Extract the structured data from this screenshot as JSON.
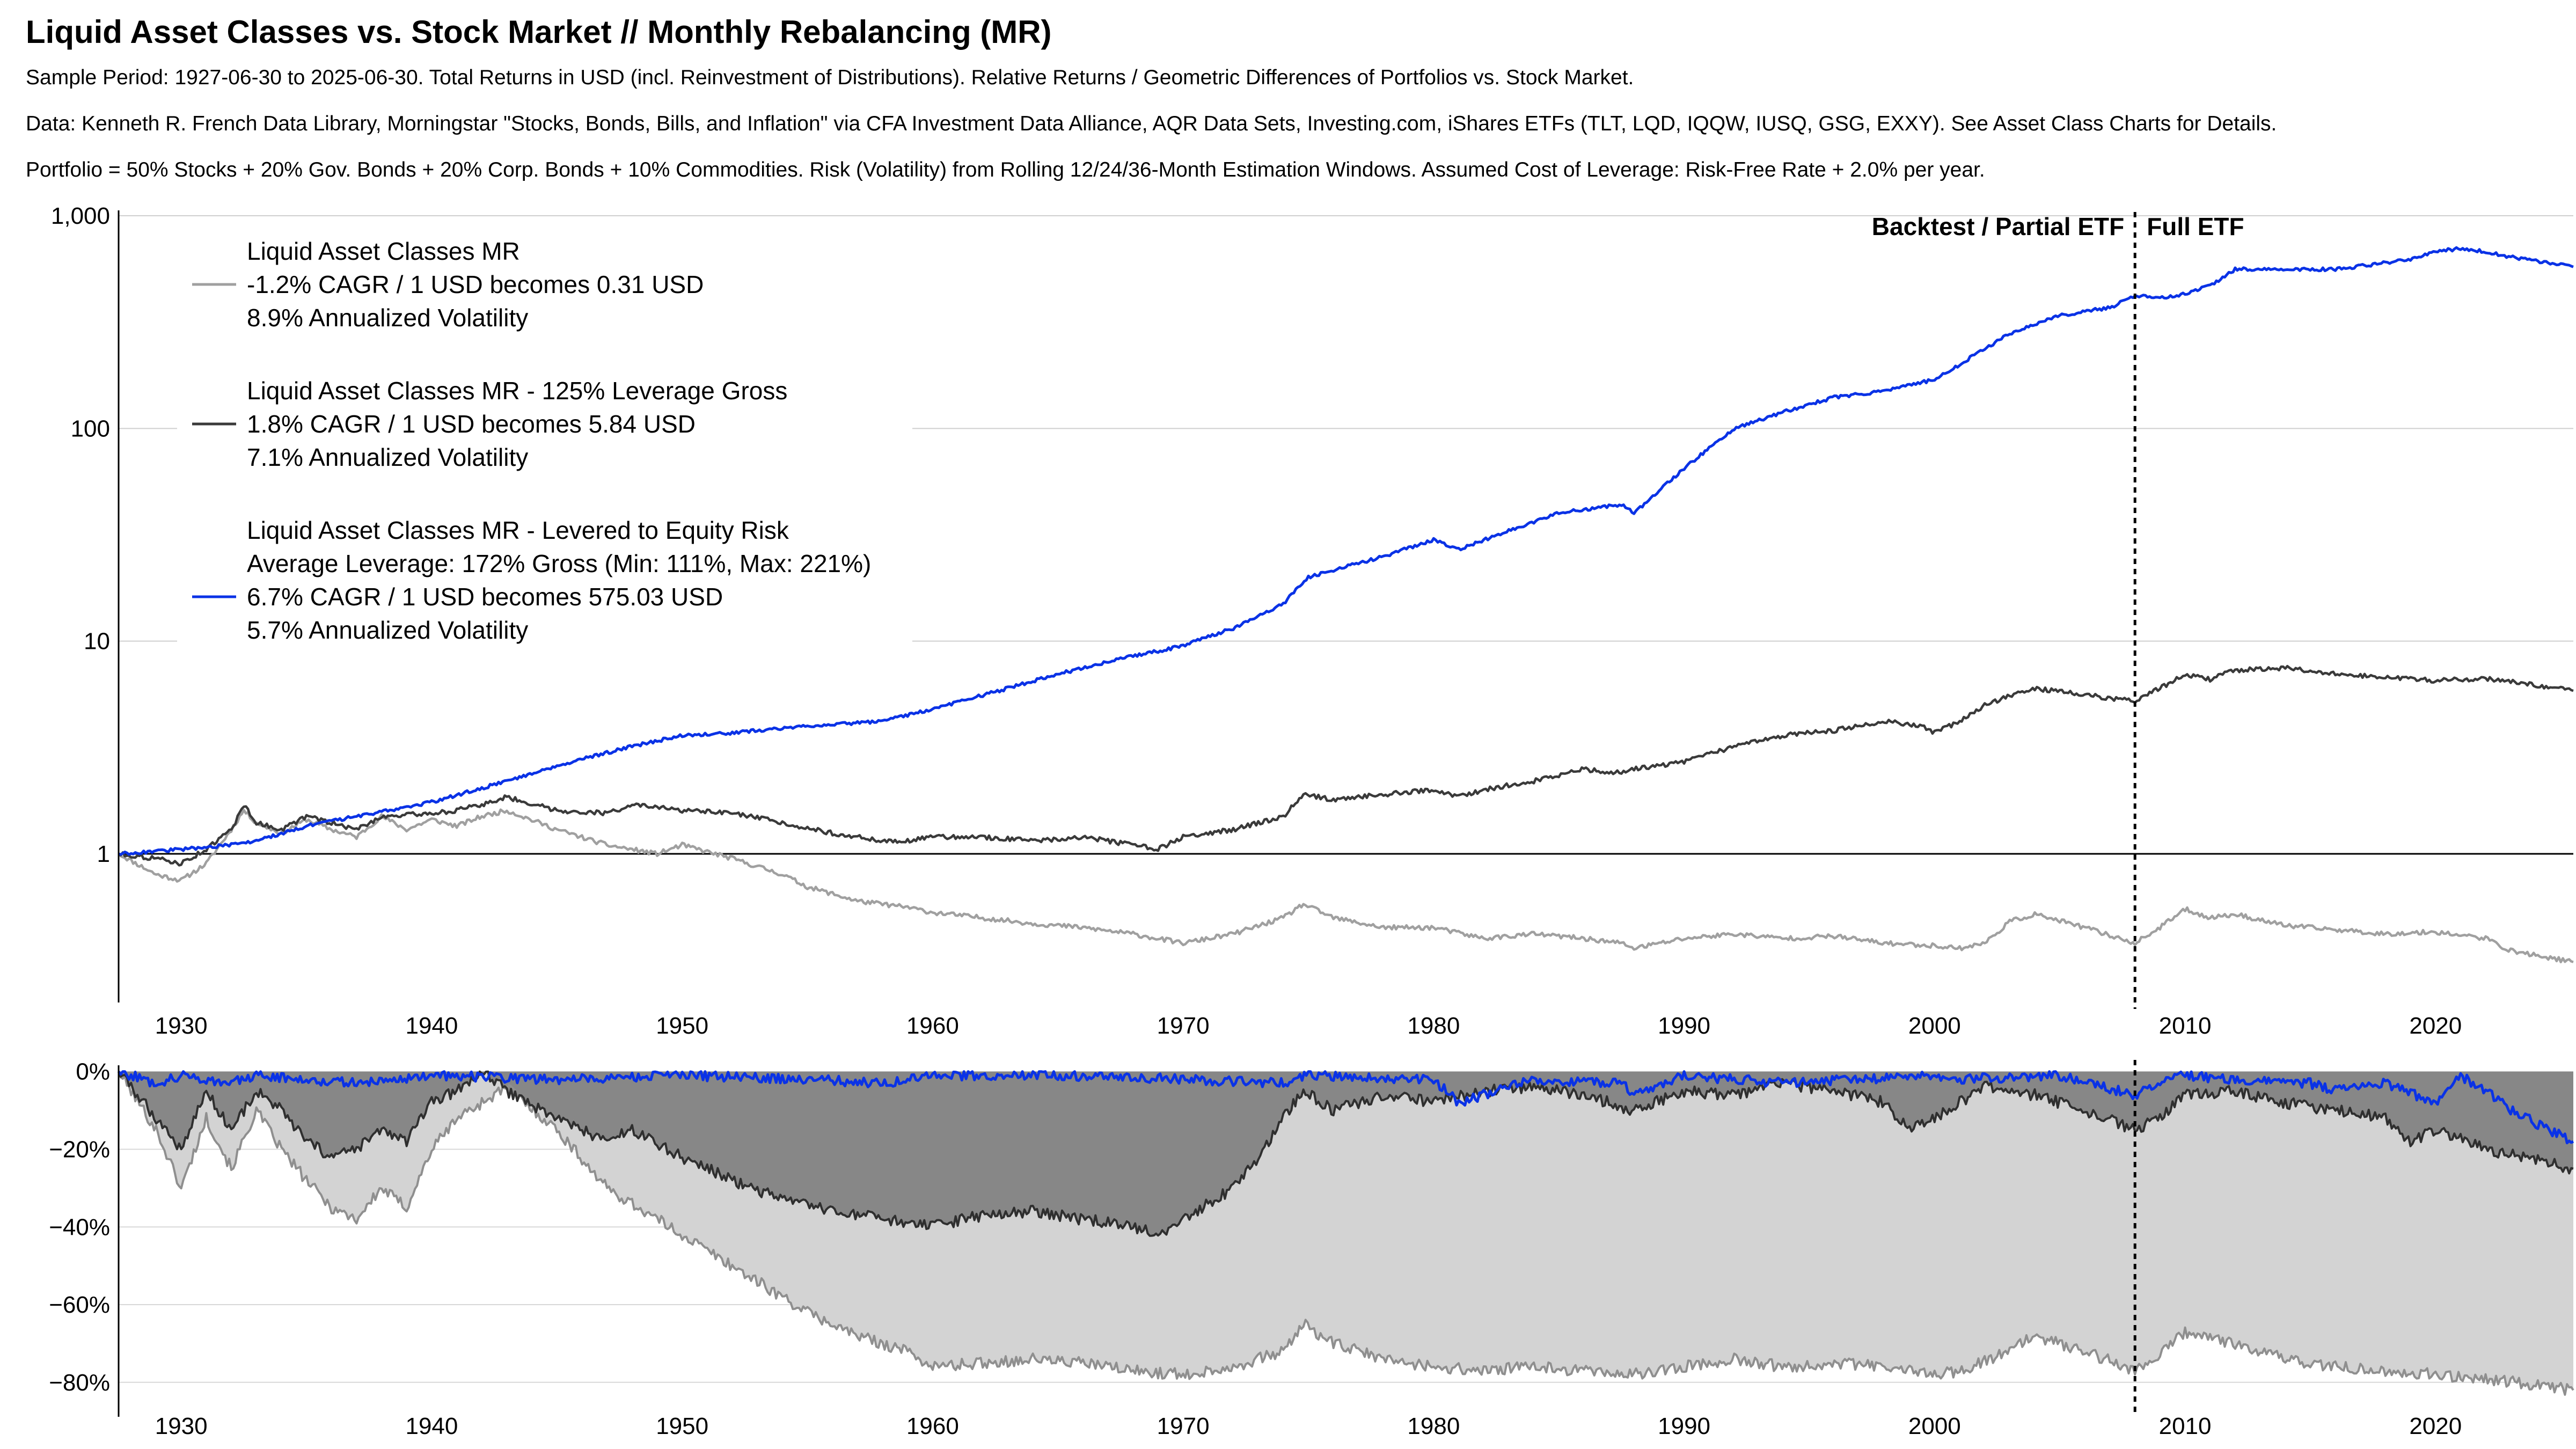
{
  "title": "Liquid Asset Classes vs. Stock Market // Monthly Rebalancing (MR)",
  "subtitle_lines": [
    "Sample Period: 1927-06-30 to 2025-06-30. Total Returns in USD (incl. Reinvestment of Distributions). Relative Returns / Geometric Differences of Portfolios vs. Stock Market.",
    "Data: Kenneth R. French Data Library, Morningstar \"Stocks, Bonds, Bills, and Inflation\" via CFA Investment Data Alliance, AQR Data Sets, Investing.com, iShares ETFs (TLT, LQD, IQQW, IUSQ, GSG, EXXY). See Asset Class Charts for Details.",
    "Portfolio = 50% Stocks + 20% Gov. Bonds + 20% Corp. Bonds + 10% Commodities. Risk (Volatility) from Rolling 12/24/36-Month Estimation Windows. Assumed Cost of Leverage: Risk-Free Rate + 2.0% per year."
  ],
  "colors": {
    "unlevered": "#a0a0a0",
    "gross125": "#3a3a3a",
    "levered": "#0a32e6",
    "dd_light_fill": "#d3d3d3",
    "dd_dark_fill": "#878787"
  },
  "chart_data": [
    {
      "type": "line",
      "yscale": "log",
      "ylim": [
        0.2,
        1000
      ],
      "xlim": [
        1927.5,
        2025.5
      ],
      "yticks": [
        1,
        10,
        100,
        1000
      ],
      "ytick_labels": [
        "1",
        "10",
        "100",
        "1,000"
      ],
      "xticks": [
        1930,
        1940,
        1950,
        1960,
        1970,
        1980,
        1990,
        2000,
        2010,
        2020
      ],
      "xtick_labels": [
        "1930",
        "1940",
        "1950",
        "1960",
        "1970",
        "1980",
        "1990",
        "2000",
        "2010",
        "2020"
      ],
      "grid": true,
      "legend_position": "top-left",
      "annotations": {
        "split_year": 2008,
        "left_label": "Backtest / Partial ETF",
        "right_label": "Full ETF"
      },
      "legend": [
        {
          "lines": [
            "Liquid Asset Classes MR",
            "-1.2% CAGR / 1 USD becomes 0.31 USD",
            "8.9% Annualized Volatility"
          ]
        },
        {
          "lines": [
            "Liquid Asset Classes MR - 125% Leverage Gross",
            "1.8% CAGR / 1 USD becomes 5.84 USD",
            "7.1% Annualized Volatility"
          ]
        },
        {
          "lines": [
            "Liquid Asset Classes MR - Levered to Equity Risk",
            "Average Leverage: 172% Gross (Min: 111%, Max: 221%)",
            "6.7% CAGR / 1 USD becomes 575.03 USD",
            "5.7% Annualized Volatility"
          ]
        }
      ],
      "series": [
        {
          "name": "Liquid Asset Classes MR",
          "x": [
            1927.5,
            1929,
            1930,
            1931,
            1932,
            1932.5,
            1933,
            1934,
            1935,
            1936,
            1937,
            1938,
            1939,
            1940,
            1941,
            1942,
            1943,
            1945,
            1947,
            1949,
            1950,
            1952,
            1954,
            1955,
            1957,
            1959,
            1960,
            1962,
            1964,
            1966,
            1968,
            1970,
            1972,
            1974,
            1974.8,
            1976,
            1978,
            1980,
            1982,
            1984,
            1986,
            1987.5,
            1988,
            1990,
            1992,
            1994,
            1996,
            1998,
            2000,
            2001,
            2002,
            2003,
            2004,
            2006,
            2008,
            2009,
            2010,
            2011,
            2012,
            2014,
            2016,
            2018,
            2020,
            2022,
            2023,
            2025.5
          ],
          "values": [
            1.0,
            0.8,
            0.75,
            0.9,
            1.3,
            1.6,
            1.4,
            1.25,
            1.45,
            1.3,
            1.2,
            1.5,
            1.3,
            1.45,
            1.35,
            1.5,
            1.6,
            1.3,
            1.1,
            1.0,
            1.1,
            0.95,
            0.8,
            0.7,
            0.6,
            0.56,
            0.53,
            0.5,
            0.47,
            0.45,
            0.42,
            0.38,
            0.42,
            0.5,
            0.58,
            0.5,
            0.45,
            0.45,
            0.4,
            0.42,
            0.4,
            0.38,
            0.36,
            0.4,
            0.42,
            0.4,
            0.41,
            0.38,
            0.37,
            0.36,
            0.38,
            0.48,
            0.52,
            0.45,
            0.38,
            0.45,
            0.55,
            0.5,
            0.52,
            0.46,
            0.44,
            0.42,
            0.43,
            0.4,
            0.35,
            0.31
          ]
        },
        {
          "name": "Liquid Asset Classes MR - 125% Leverage Gross",
          "x": [
            1927.5,
            1929,
            1930,
            1931,
            1932,
            1932.5,
            1933,
            1934,
            1935,
            1936,
            1937,
            1938,
            1940,
            1941,
            1942,
            1943,
            1945,
            1947,
            1948,
            1950,
            1952,
            1954,
            1956,
            1958,
            1959,
            1960,
            1962,
            1964,
            1966,
            1968,
            1969,
            1970,
            1972,
            1974,
            1974.8,
            1976,
            1978,
            1980,
            1981,
            1982,
            1984,
            1986,
            1987.5,
            1988,
            1990,
            1992,
            1994,
            1996,
            1998,
            1999.5,
            2000,
            2001,
            2002,
            2003,
            2004,
            2006,
            2008,
            2009,
            2010,
            2011,
            2012,
            2014,
            2016,
            2018,
            2020,
            2022,
            2025.5
          ],
          "values": [
            1.0,
            0.95,
            0.9,
            1.05,
            1.3,
            1.7,
            1.4,
            1.3,
            1.5,
            1.4,
            1.3,
            1.5,
            1.55,
            1.6,
            1.7,
            1.85,
            1.6,
            1.55,
            1.7,
            1.6,
            1.55,
            1.4,
            1.25,
            1.15,
            1.15,
            1.2,
            1.2,
            1.15,
            1.2,
            1.1,
            1.05,
            1.2,
            1.3,
            1.5,
            1.9,
            1.8,
            1.9,
            2.0,
            1.85,
            2.0,
            2.2,
            2.5,
            2.4,
            2.5,
            2.7,
            3.2,
            3.6,
            3.8,
            4.2,
            4.0,
            3.7,
            4.2,
            5.0,
            5.5,
            6.0,
            5.6,
            5.2,
            6.0,
            7.0,
            6.6,
            7.3,
            7.5,
            7.0,
            6.8,
            6.5,
            6.7,
            5.84
          ]
        },
        {
          "name": "Liquid Asset Classes MR - Levered to Equity Risk",
          "x": [
            1927.5,
            1930,
            1932,
            1933,
            1935,
            1937,
            1940,
            1943,
            1945,
            1948,
            1950,
            1952,
            1955,
            1958,
            1960,
            1963,
            1965,
            1968,
            1970,
            1972,
            1974,
            1975,
            1978,
            1980,
            1981,
            1983,
            1985,
            1987.5,
            1988,
            1990,
            1992,
            1994,
            1996,
            1998,
            2000,
            2001,
            2003,
            2005,
            2007,
            2008,
            2009,
            2010,
            2011,
            2012,
            2014,
            2016,
            2018,
            2019,
            2020,
            2021,
            2022,
            2023,
            2025.5
          ],
          "values": [
            1.0,
            1.05,
            1.1,
            1.15,
            1.35,
            1.5,
            1.75,
            2.2,
            2.6,
            3.2,
            3.6,
            3.7,
            4.0,
            4.2,
            4.8,
            6.0,
            7.0,
            8.5,
            9.5,
            11.5,
            15.0,
            20.0,
            25.0,
            30.0,
            27.0,
            33.0,
            40.0,
            44.0,
            40.0,
            65.0,
            100.0,
            120.0,
            140.0,
            150.0,
            170.0,
            200.0,
            280.0,
            340.0,
            370.0,
            420.0,
            410.0,
            430.0,
            470.0,
            560.0,
            560.0,
            560.0,
            600.0,
            620.0,
            680.0,
            700.0,
            680.0,
            640.0,
            575.0
          ]
        }
      ]
    },
    {
      "type": "area",
      "ylim": [
        -85,
        3
      ],
      "xlim": [
        1927.5,
        2025.5
      ],
      "yticks": [
        0,
        -20,
        -40,
        -60,
        -80
      ],
      "ytick_labels": [
        "0%",
        "−20%",
        "−40%",
        "−60%",
        "−80%"
      ],
      "xticks": [
        1930,
        1940,
        1950,
        1960,
        1970,
        1980,
        1990,
        2000,
        2010,
        2020
      ],
      "xtick_labels": [
        "1930",
        "1940",
        "1950",
        "1960",
        "1970",
        "1980",
        "1990",
        "2000",
        "2010",
        "2020"
      ],
      "grid": true,
      "series": [
        {
          "name": "Liquid Asset Classes MR",
          "x": [
            1927.5,
            1929,
            1930,
            1931,
            1932,
            1933,
            1934,
            1935,
            1936,
            1937,
            1938,
            1939,
            1940,
            1941,
            1942,
            1943,
            1945,
            1947,
            1949,
            1950,
            1952,
            1954,
            1955,
            1957,
            1959,
            1960,
            1962,
            1964,
            1966,
            1968,
            1970,
            1972,
            1974,
            1974.8,
            1976,
            1978,
            1980,
            1982,
            1984,
            1986,
            1988,
            1990,
            1992,
            1994,
            1996,
            1998,
            2000,
            2001,
            2003,
            2004,
            2006,
            2008,
            2009,
            2010,
            2012,
            2014,
            2016,
            2018,
            2020,
            2022,
            2025.5
          ],
          "values": [
            0,
            -15,
            -30,
            -12,
            -25,
            -10,
            -20,
            -28,
            -35,
            -38,
            -30,
            -35,
            -20,
            -12,
            -8,
            -4,
            -15,
            -30,
            -38,
            -42,
            -50,
            -58,
            -62,
            -68,
            -72,
            -76,
            -75,
            -74,
            -75,
            -77,
            -78,
            -76,
            -72,
            -65,
            -70,
            -74,
            -76,
            -77,
            -76,
            -77,
            -78,
            -76,
            -74,
            -76,
            -75,
            -76,
            -78,
            -77,
            -72,
            -68,
            -72,
            -77,
            -73,
            -67,
            -70,
            -74,
            -76,
            -77,
            -78,
            -79,
            -82
          ]
        },
        {
          "name": "Liquid Asset Classes MR - 125% Leverage Gross",
          "x": [
            1927.5,
            1928.5,
            1929,
            1930,
            1931,
            1932,
            1933,
            1934,
            1935,
            1936,
            1937,
            1938,
            1939,
            1940,
            1941,
            1942,
            1943,
            1945,
            1947,
            1948,
            1950,
            1952,
            1954,
            1956,
            1958,
            1960,
            1962,
            1964,
            1966,
            1968,
            1969,
            1970,
            1972,
            1973,
            1974,
            1974.8,
            1976,
            1978,
            1980,
            1982,
            1984,
            1986,
            1988,
            1990,
            1992,
            1994,
            1996,
            1998,
            1999,
            2000,
            2002,
            2004,
            2006,
            2008,
            2009,
            2010,
            2012,
            2014,
            2016,
            2018,
            2019,
            2020,
            2022,
            2025.5
          ],
          "values": [
            0,
            -8,
            -12,
            -20,
            -5,
            -15,
            -5,
            -10,
            -18,
            -22,
            -20,
            -15,
            -18,
            -8,
            -5,
            0,
            -5,
            -12,
            -18,
            -15,
            -22,
            -28,
            -33,
            -36,
            -38,
            -40,
            -37,
            -36,
            -38,
            -40,
            -42,
            -38,
            -30,
            -22,
            -12,
            -5,
            -10,
            -6,
            -8,
            -5,
            -4,
            -6,
            -10,
            -5,
            -6,
            -3,
            -5,
            -8,
            -15,
            -12,
            -4,
            -6,
            -10,
            -15,
            -12,
            -6,
            -5,
            -8,
            -10,
            -12,
            -18,
            -15,
            -20,
            -25
          ]
        },
        {
          "name": "Liquid Asset Classes MR - Levered to Equity Risk",
          "x": [
            1927.5,
            1929,
            1930,
            1932,
            1933,
            1935,
            1937,
            1940,
            1945,
            1950,
            1955,
            1958,
            1960,
            1965,
            1970,
            1974,
            1975,
            1980,
            1981,
            1984,
            1987.5,
            1988,
            1990,
            1994,
            2000,
            2001,
            2005,
            2008,
            2009,
            2010,
            2012,
            2015,
            2016,
            2018,
            2020,
            2021,
            2022,
            2023,
            2025.5
          ],
          "values": [
            0,
            -3,
            -1,
            -3,
            -1,
            -2,
            -3,
            -1,
            -2,
            -1,
            -2,
            -3,
            -1,
            -1,
            -2,
            -3,
            -1,
            -2,
            -8,
            -2,
            -3,
            -6,
            -1,
            -3,
            -1,
            -2,
            -1,
            -6,
            -3,
            -1,
            -2,
            -3,
            -5,
            -3,
            -8,
            -1,
            -5,
            -10,
            -18
          ]
        }
      ]
    }
  ]
}
